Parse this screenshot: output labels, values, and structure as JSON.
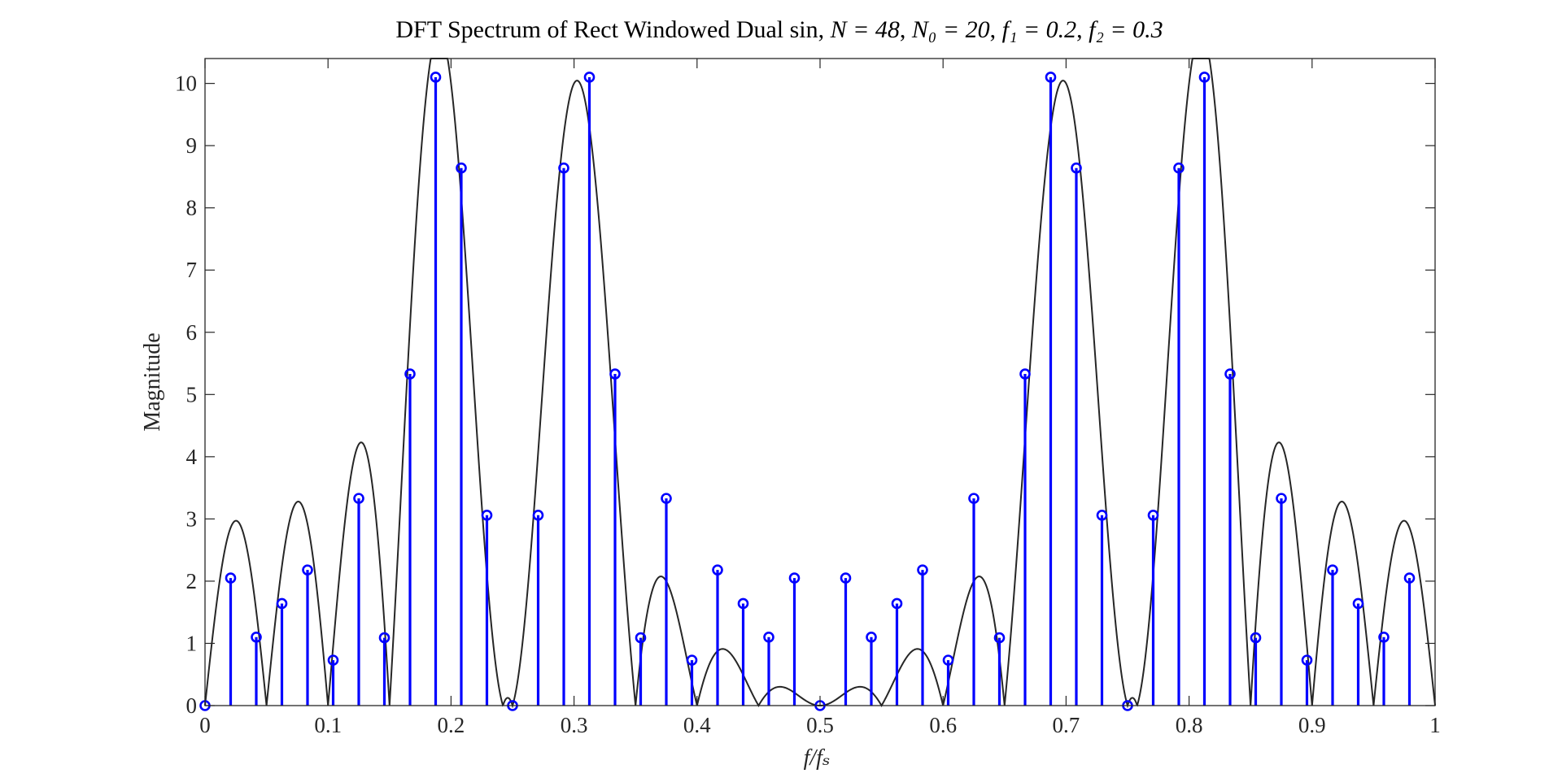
{
  "chart_data": {
    "type": "stem",
    "title": {
      "prefix": "DFT Spectrum of Rect Windowed Dual sin, ",
      "N_label": "N = 48",
      "N0_label": "N₀ = 20",
      "f1_label": "f₁ = 0.2",
      "f2_label": "f₂ = 0.3",
      "separator": ", "
    },
    "xlabel": "f/fₛ",
    "ylabel": "Magnitude",
    "xlim": [
      0,
      1
    ],
    "ylim": [
      0,
      10.4
    ],
    "xticks": [
      0,
      0.1,
      0.2,
      0.3,
      0.4,
      0.5,
      0.6,
      0.7,
      0.8,
      0.9,
      1
    ],
    "xtick_labels": [
      "0",
      "0.1",
      "0.2",
      "0.3",
      "0.4",
      "0.5",
      "0.6",
      "0.7",
      "0.8",
      "0.9",
      "1"
    ],
    "yticks": [
      0,
      1,
      2,
      3,
      4,
      5,
      6,
      7,
      8,
      9,
      10
    ],
    "ytick_labels": [
      "0",
      "1",
      "2",
      "3",
      "4",
      "5",
      "6",
      "7",
      "8",
      "9",
      "10"
    ],
    "grid": false,
    "box": true,
    "colors": {
      "stem": "#0000ff",
      "curve": "#262626",
      "axis": "#262626"
    },
    "series": [
      {
        "kind": "curve",
        "description": "continuous DTFT magnitude |X(f)| = |sin(pi N0 (f-f1))/sin(pi (f-f1)) ± ...| / 2",
        "N0": 20,
        "f1": 0.2,
        "f2": 0.3
      },
      {
        "kind": "stem",
        "x": [
          0,
          0.020833,
          0.041667,
          0.0625,
          0.083333,
          0.104167,
          0.125,
          0.145833,
          0.166667,
          0.1875,
          0.208333,
          0.229167,
          0.25,
          0.270833,
          0.291667,
          0.3125,
          0.333333,
          0.354167,
          0.375,
          0.395833,
          0.416667,
          0.4375,
          0.458333,
          0.479167,
          0.5,
          0.520833,
          0.541667,
          0.5625,
          0.583333,
          0.604167,
          0.625,
          0.645833,
          0.666667,
          0.6875,
          0.708333,
          0.729167,
          0.75,
          0.770833,
          0.791667,
          0.8125,
          0.833333,
          0.854167,
          0.875,
          0.895833,
          0.916667,
          0.9375,
          0.958333,
          0.979167
        ],
        "values": [
          0,
          2.05,
          1.1,
          1.64,
          2.18,
          0.73,
          3.33,
          1.09,
          5.33,
          10.1,
          8.64,
          3.06,
          0,
          3.06,
          8.64,
          10.1,
          5.33,
          1.09,
          3.33,
          0.73,
          2.18,
          1.64,
          1.1,
          2.05,
          0,
          2.05,
          1.1,
          1.64,
          2.18,
          0.73,
          3.33,
          1.09,
          5.33,
          10.1,
          8.64,
          3.06,
          0,
          3.06,
          8.64,
          10.1,
          5.33,
          1.09,
          3.33,
          0.73,
          2.18,
          1.64,
          1.1,
          2.05
        ]
      }
    ]
  }
}
